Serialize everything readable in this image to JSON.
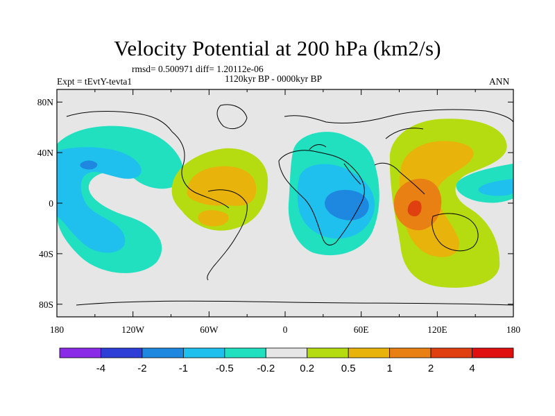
{
  "chart_data": {
    "type": "heatmap",
    "title": "Velocity Potential at 200 hPa (km2/s)",
    "stats": "rmsd= 0.500971 diff= 1.20112e-06",
    "subtitle_left": "Expt = tEvtY-tevta1",
    "subtitle_center": "1120kyr BP - 0000kyr BP",
    "subtitle_right": "ANN",
    "x_ticks": [
      "180",
      "120W",
      "60W",
      "0",
      "60E",
      "120E",
      "180"
    ],
    "x_tick_values": [
      -180,
      -120,
      -60,
      0,
      60,
      120,
      180
    ],
    "y_ticks": [
      "80N",
      "40N",
      "0",
      "40S",
      "80S"
    ],
    "y_tick_values": [
      80,
      40,
      0,
      -40,
      -80
    ],
    "xlim": [
      -180,
      180
    ],
    "ylim": [
      -90,
      90
    ],
    "colorbar": {
      "labels": [
        "-4",
        "-2",
        "-1",
        "-0.5",
        "-0.2",
        "0.2",
        "0.5",
        "1",
        "2",
        "4"
      ],
      "colors": [
        "#8a2be8",
        "#2e3fd8",
        "#1e88e0",
        "#20c0ee",
        "#20e0c0",
        "#e6e6e6",
        "#b4dc10",
        "#e8b40c",
        "#e88014",
        "#e04010",
        "#e01010"
      ]
    },
    "features": [
      {
        "name": "negative-center-north-pacific",
        "lon": -155,
        "lat": 28,
        "value": -1.2
      },
      {
        "name": "negative-south-pacific",
        "lon": -150,
        "lat": -25,
        "value": -0.8
      },
      {
        "name": "positive-tropical-atlantic",
        "lon": -50,
        "lat": 10,
        "value": 0.9
      },
      {
        "name": "negative-center-indian-ocean",
        "lon": 45,
        "lat": 0,
        "value": -1.6
      },
      {
        "name": "positive-center-maritime-continent",
        "lon": 105,
        "lat": -2,
        "value": 3.0
      },
      {
        "name": "positive-west-pacific",
        "lon": 120,
        "lat": 20,
        "value": 0.8
      },
      {
        "name": "negative-central-pacific",
        "lon": 170,
        "lat": 8,
        "value": -0.6
      }
    ]
  }
}
